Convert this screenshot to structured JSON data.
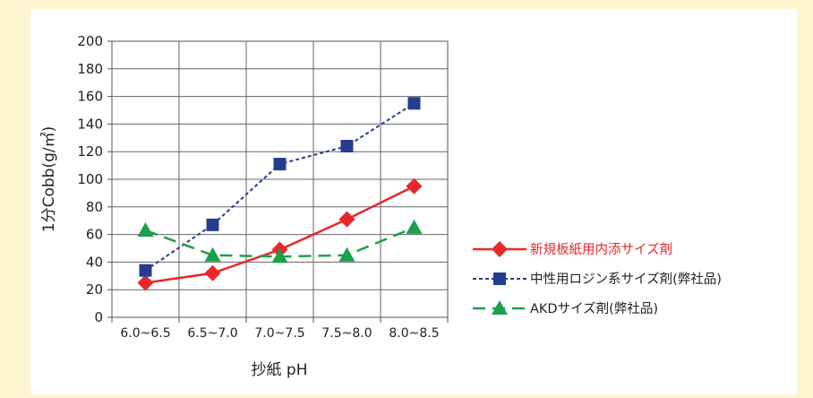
{
  "chart_data": {
    "type": "line",
    "xlabel": "抄紙 pH",
    "ylabel": "1分Cobb(g/㎡)",
    "categories": [
      "6.0~6.5",
      "6.5~7.0",
      "7.0~7.5",
      "7.5~8.0",
      "8.0~8.5"
    ],
    "y_ticks": [
      "0",
      "20",
      "40",
      "60",
      "80",
      "100",
      "120",
      "140",
      "160",
      "180",
      "200"
    ],
    "ylim": [
      0,
      200
    ],
    "grid": true,
    "legend_position": "right",
    "series": [
      {
        "name": "新規板紙用内添サイズ剤",
        "values": [
          25,
          32,
          49,
          71,
          95
        ],
        "color": "#e8282a",
        "marker": "diamond",
        "dash": "solid",
        "label_color": "#e8282a"
      },
      {
        "name": "中性用ロジン系サイズ剤(弊社品)",
        "values": [
          34,
          67,
          111,
          124,
          155
        ],
        "color": "#253c8f",
        "marker": "square",
        "dash": "dotted",
        "label_color": "#222222"
      },
      {
        "name": "AKDサイズ剤(弊社品)",
        "values": [
          63,
          45,
          44,
          45,
          65
        ],
        "color": "#1aa14a",
        "marker": "triangle",
        "dash": "dashed",
        "label_color": "#222222"
      }
    ]
  }
}
